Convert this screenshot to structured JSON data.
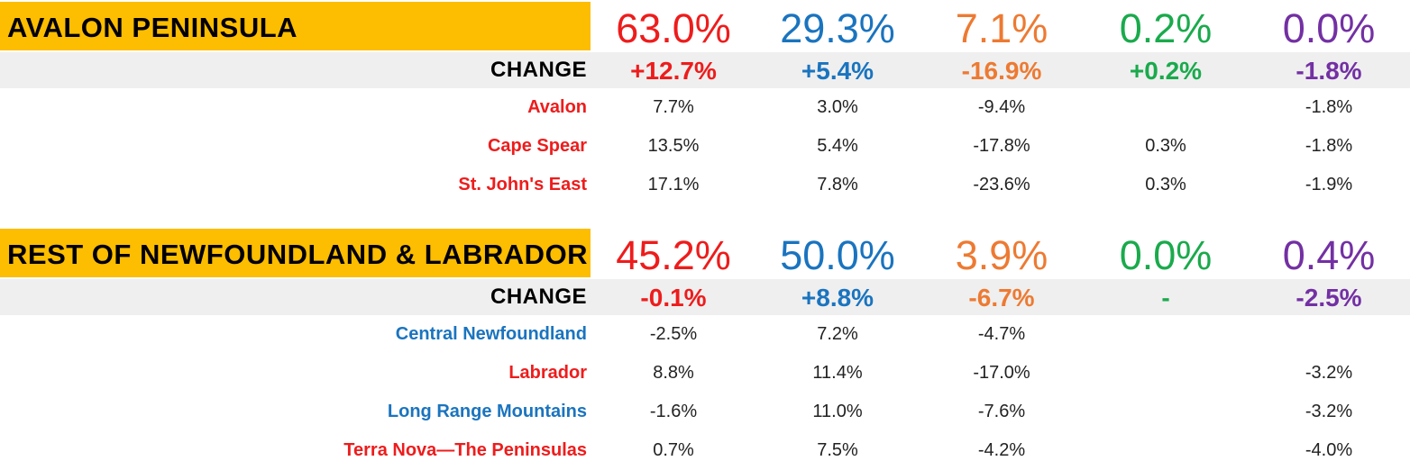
{
  "colors": {
    "col1": "#ee1c1c",
    "col2": "#1a74bf",
    "col3": "#ed7a32",
    "col4": "#1aaa4c",
    "col5": "#7330a3",
    "red_district": "#ee1c1c",
    "blue_district": "#1a74bf",
    "title_bg": "#fdbd00",
    "change_bg": "#efefef"
  },
  "sections": [
    {
      "title": "AVALON PENINSULA",
      "totals": [
        "63.0%",
        "29.3%",
        "7.1%",
        "0.2%",
        "0.0%"
      ],
      "change_label": "CHANGE",
      "changes": [
        "+12.7%",
        "+5.4%",
        "-16.9%",
        "+0.2%",
        "-1.8%"
      ],
      "districts": [
        {
          "name": "Avalon",
          "color": "red",
          "values": [
            "7.7%",
            "3.0%",
            "-9.4%",
            "",
            "-1.8%"
          ]
        },
        {
          "name": "Cape Spear",
          "color": "red",
          "values": [
            "13.5%",
            "5.4%",
            "-17.8%",
            "0.3%",
            "-1.8%"
          ]
        },
        {
          "name": "St. John's East",
          "color": "red",
          "values": [
            "17.1%",
            "7.8%",
            "-23.6%",
            "0.3%",
            "-1.9%"
          ]
        }
      ]
    },
    {
      "title": "REST OF NEWFOUNDLAND & LABRADOR",
      "totals": [
        "45.2%",
        "50.0%",
        "3.9%",
        "0.0%",
        "0.4%"
      ],
      "change_label": "CHANGE",
      "changes": [
        "-0.1%",
        "+8.8%",
        "-6.7%",
        "-",
        "-2.5%"
      ],
      "districts": [
        {
          "name": "Central Newfoundland",
          "color": "blue",
          "values": [
            "-2.5%",
            "7.2%",
            "-4.7%",
            "",
            ""
          ]
        },
        {
          "name": "Labrador",
          "color": "red",
          "values": [
            "8.8%",
            "11.4%",
            "-17.0%",
            "",
            "-3.2%"
          ]
        },
        {
          "name": "Long Range Mountains",
          "color": "blue",
          "values": [
            "-1.6%",
            "11.0%",
            "-7.6%",
            "",
            "-3.2%"
          ]
        },
        {
          "name": "Terra Nova—The Peninsulas",
          "color": "red",
          "values": [
            "0.7%",
            "7.5%",
            "-4.2%",
            "",
            "-4.0%"
          ]
        }
      ]
    }
  ]
}
